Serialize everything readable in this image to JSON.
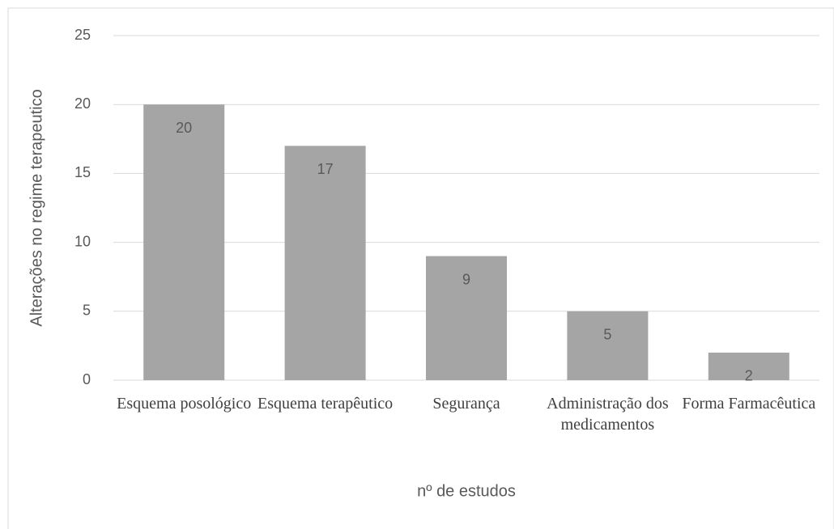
{
  "chart_data": {
    "type": "bar",
    "categories": [
      "Esquema posológico",
      "Esquema terapêutico",
      "Segurança",
      "Administração dos medicamentos",
      "Forma Farmacêutica"
    ],
    "values": [
      20,
      17,
      9,
      5,
      2
    ],
    "color": "#a5a5a5",
    "x_label": "nº de estudos",
    "y_label": "Alterações no regime terapeutico",
    "ylim": [
      0,
      25
    ],
    "yticks": [
      0,
      5,
      10,
      15,
      20,
      25
    ],
    "grid": true
  }
}
